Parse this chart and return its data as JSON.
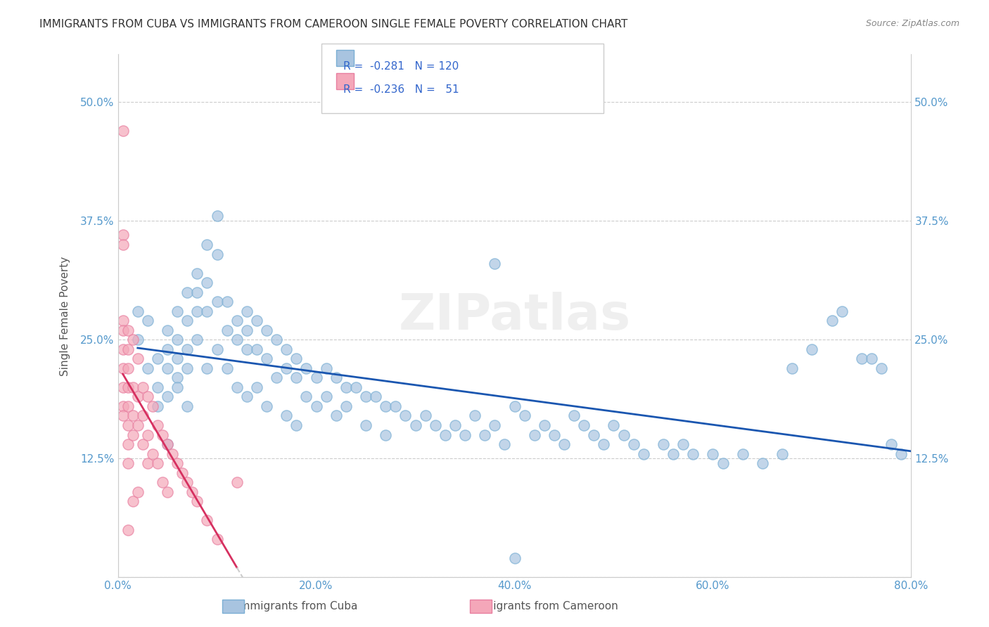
{
  "title": "IMMIGRANTS FROM CUBA VS IMMIGRANTS FROM CAMEROON SINGLE FEMALE POVERTY CORRELATION CHART",
  "source": "Source: ZipAtlas.com",
  "xlabel": "",
  "ylabel": "Single Female Poverty",
  "xlim": [
    0.0,
    0.8
  ],
  "ylim": [
    0.0,
    0.55
  ],
  "xticks": [
    0.0,
    0.2,
    0.4,
    0.6,
    0.8
  ],
  "xticklabels": [
    "0.0%",
    "20.0%",
    "40.0%",
    "60.0%",
    "80.0%"
  ],
  "yticks": [
    0.0,
    0.125,
    0.25,
    0.375,
    0.5
  ],
  "yticklabels": [
    "",
    "12.5%",
    "25.0%",
    "37.5%",
    "50.0%"
  ],
  "cuba_color": "#a8c4e0",
  "cameroon_color": "#f4a7b9",
  "cuba_edge": "#7bafd4",
  "cameroon_edge": "#e87fa0",
  "line_cuba": "#1a56b0",
  "line_cameroon": "#d63060",
  "line_cameroon_ext": "#cccccc",
  "R_cuba": -0.281,
  "N_cuba": 120,
  "R_cameroon": -0.236,
  "N_cameroon": 51,
  "background_color": "#ffffff",
  "grid_color": "#cccccc",
  "title_color": "#333333",
  "axis_label_color": "#555555",
  "tick_color": "#5599cc",
  "legend_r_color": "#3366cc",
  "watermark": "ZIPatlas",
  "cuba_x": [
    0.02,
    0.03,
    0.03,
    0.04,
    0.04,
    0.04,
    0.05,
    0.05,
    0.05,
    0.05,
    0.06,
    0.06,
    0.06,
    0.06,
    0.06,
    0.07,
    0.07,
    0.07,
    0.07,
    0.07,
    0.08,
    0.08,
    0.08,
    0.08,
    0.09,
    0.09,
    0.09,
    0.09,
    0.1,
    0.1,
    0.1,
    0.1,
    0.11,
    0.11,
    0.11,
    0.12,
    0.12,
    0.12,
    0.13,
    0.13,
    0.13,
    0.13,
    0.14,
    0.14,
    0.14,
    0.15,
    0.15,
    0.15,
    0.16,
    0.16,
    0.17,
    0.17,
    0.17,
    0.18,
    0.18,
    0.18,
    0.19,
    0.19,
    0.2,
    0.2,
    0.21,
    0.21,
    0.22,
    0.22,
    0.23,
    0.23,
    0.24,
    0.25,
    0.25,
    0.26,
    0.27,
    0.27,
    0.28,
    0.29,
    0.3,
    0.31,
    0.32,
    0.33,
    0.34,
    0.35,
    0.36,
    0.37,
    0.38,
    0.39,
    0.4,
    0.41,
    0.42,
    0.43,
    0.44,
    0.45,
    0.46,
    0.47,
    0.48,
    0.49,
    0.5,
    0.51,
    0.52,
    0.53,
    0.55,
    0.56,
    0.57,
    0.58,
    0.6,
    0.61,
    0.63,
    0.65,
    0.67,
    0.68,
    0.7,
    0.72,
    0.73,
    0.75,
    0.76,
    0.77,
    0.78,
    0.79,
    0.02,
    0.05,
    0.4,
    0.38
  ],
  "cuba_y": [
    0.25,
    0.27,
    0.22,
    0.23,
    0.2,
    0.18,
    0.24,
    0.22,
    0.26,
    0.19,
    0.28,
    0.25,
    0.21,
    0.23,
    0.2,
    0.3,
    0.27,
    0.24,
    0.22,
    0.18,
    0.32,
    0.3,
    0.28,
    0.25,
    0.35,
    0.31,
    0.28,
    0.22,
    0.38,
    0.34,
    0.29,
    0.24,
    0.29,
    0.26,
    0.22,
    0.27,
    0.25,
    0.2,
    0.28,
    0.26,
    0.24,
    0.19,
    0.27,
    0.24,
    0.2,
    0.26,
    0.23,
    0.18,
    0.25,
    0.21,
    0.24,
    0.22,
    0.17,
    0.23,
    0.21,
    0.16,
    0.22,
    0.19,
    0.21,
    0.18,
    0.22,
    0.19,
    0.21,
    0.17,
    0.2,
    0.18,
    0.2,
    0.19,
    0.16,
    0.19,
    0.18,
    0.15,
    0.18,
    0.17,
    0.16,
    0.17,
    0.16,
    0.15,
    0.16,
    0.15,
    0.17,
    0.15,
    0.16,
    0.14,
    0.18,
    0.17,
    0.15,
    0.16,
    0.15,
    0.14,
    0.17,
    0.16,
    0.15,
    0.14,
    0.16,
    0.15,
    0.14,
    0.13,
    0.14,
    0.13,
    0.14,
    0.13,
    0.13,
    0.12,
    0.13,
    0.12,
    0.13,
    0.22,
    0.24,
    0.27,
    0.28,
    0.23,
    0.23,
    0.22,
    0.14,
    0.13,
    0.28,
    0.14,
    0.02,
    0.33
  ],
  "cameroon_x": [
    0.005,
    0.005,
    0.005,
    0.005,
    0.005,
    0.005,
    0.005,
    0.005,
    0.005,
    0.005,
    0.01,
    0.01,
    0.01,
    0.01,
    0.01,
    0.01,
    0.01,
    0.01,
    0.01,
    0.015,
    0.015,
    0.015,
    0.015,
    0.015,
    0.02,
    0.02,
    0.02,
    0.02,
    0.025,
    0.025,
    0.025,
    0.03,
    0.03,
    0.03,
    0.035,
    0.035,
    0.04,
    0.04,
    0.045,
    0.045,
    0.05,
    0.05,
    0.055,
    0.06,
    0.065,
    0.07,
    0.075,
    0.08,
    0.09,
    0.1,
    0.12
  ],
  "cameroon_y": [
    0.47,
    0.36,
    0.35,
    0.27,
    0.26,
    0.24,
    0.22,
    0.2,
    0.18,
    0.17,
    0.26,
    0.24,
    0.22,
    0.2,
    0.18,
    0.16,
    0.14,
    0.12,
    0.05,
    0.25,
    0.2,
    0.17,
    0.15,
    0.08,
    0.23,
    0.19,
    0.16,
    0.09,
    0.2,
    0.17,
    0.14,
    0.19,
    0.15,
    0.12,
    0.18,
    0.13,
    0.16,
    0.12,
    0.15,
    0.1,
    0.14,
    0.09,
    0.13,
    0.12,
    0.11,
    0.1,
    0.09,
    0.08,
    0.06,
    0.04,
    0.1
  ]
}
